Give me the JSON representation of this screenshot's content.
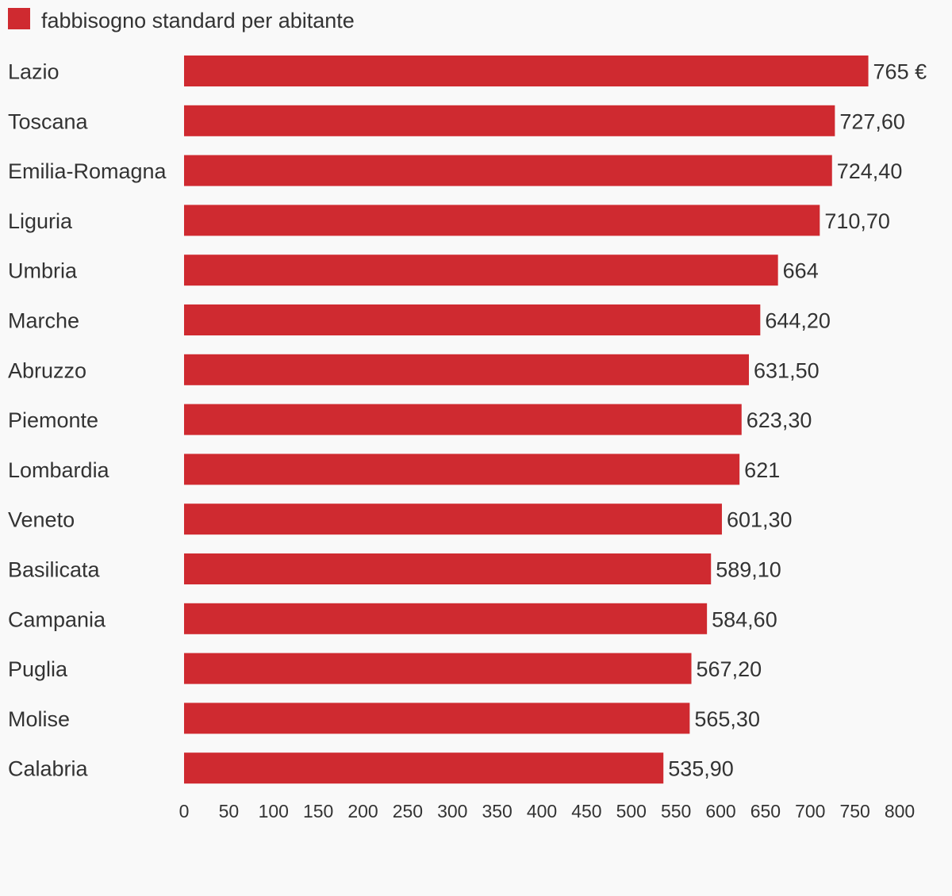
{
  "chart_data": {
    "type": "bar",
    "orientation": "horizontal",
    "legend": {
      "position": "top-left",
      "entries": [
        "fabbisogno standard per abitante"
      ]
    },
    "series": [
      {
        "name": "fabbisogno standard per abitante",
        "color": "#cf2a30"
      }
    ],
    "categories": [
      "Lazio",
      "Toscana",
      "Emilia-Romagna",
      "Liguria",
      "Umbria",
      "Marche",
      "Abruzzo",
      "Piemonte",
      "Lombardia",
      "Veneto",
      "Basilicata",
      "Campania",
      "Puglia",
      "Molise",
      "Calabria"
    ],
    "values": [
      765,
      727.6,
      724.4,
      710.7,
      664,
      644.2,
      631.5,
      623.3,
      621,
      601.3,
      589.1,
      584.6,
      567.2,
      565.3,
      535.9
    ],
    "value_labels": [
      "765 €",
      "727,60",
      "724,40",
      "710,70",
      "664",
      "644,20",
      "631,50",
      "623,30",
      "621",
      "601,30",
      "589,10",
      "584,60",
      "567,20",
      "565,30",
      "535,90"
    ],
    "x_ticks": [
      0,
      50,
      100,
      150,
      200,
      250,
      300,
      350,
      400,
      450,
      500,
      550,
      600,
      650,
      700,
      750,
      800
    ],
    "xlim": [
      0,
      800
    ],
    "grid": false
  }
}
